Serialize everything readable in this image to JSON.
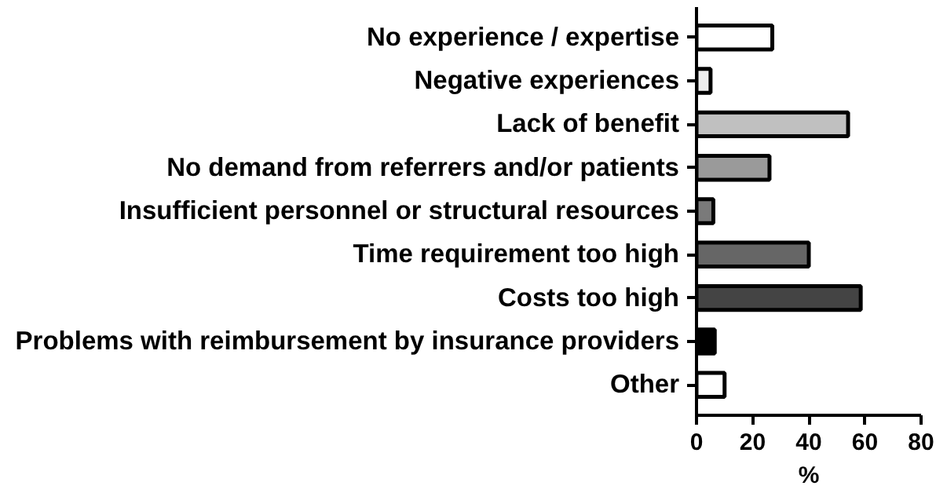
{
  "chart_data": {
    "type": "bar",
    "orientation": "horizontal",
    "xlabel": "%",
    "categories": [
      "No experience / expertise",
      "Negative experiences",
      "Lack of benefit",
      "No demand from referrers and/or patients",
      "Insufficient personnel or structural resources",
      "Time requirement too high",
      "Costs too high",
      "Problems with reimbursement by insurance providers",
      "Other"
    ],
    "values": [
      27,
      5,
      54,
      26,
      6,
      40,
      58.5,
      6.5,
      10
    ],
    "colors": [
      "#ffffff",
      "#eeeeee",
      "#c0c0c0",
      "#9a9a9a",
      "#7a7a7a",
      "#666666",
      "#444444",
      "#000000",
      "#ffffff"
    ],
    "xlim": [
      0,
      80
    ],
    "xticks": [
      0,
      20,
      40,
      60,
      80
    ],
    "grid": false
  }
}
